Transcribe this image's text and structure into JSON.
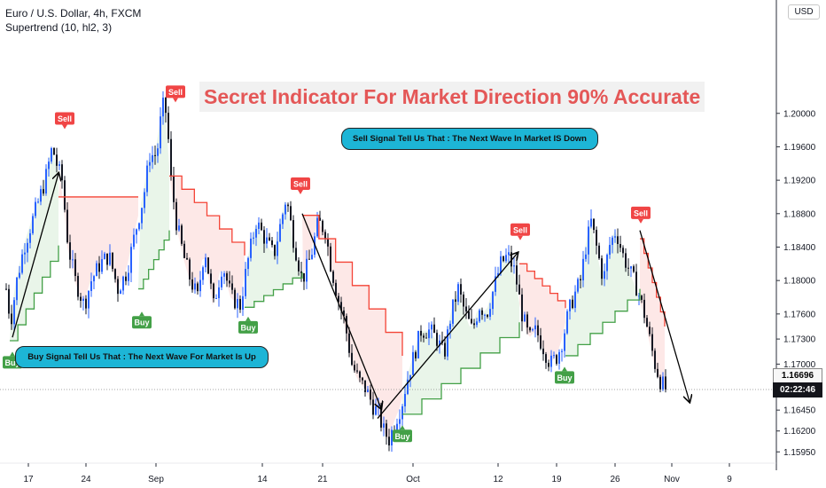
{
  "header": {
    "symbol_line": "Euro / U.S. Dollar, 4h, FXCM",
    "indicator_line": "Supertrend (10, hl2, 3)"
  },
  "currency_label": "USD",
  "headline": "Secret Indicator For Market Direction 90% Accurate",
  "annotations": {
    "sell_note": "Sell Signal Tell Us That : The Next Wave In Market IS Down",
    "buy_note": "Buy Signal Tell Us That : The Next Wave For Market Is Up"
  },
  "price_label": "1.16696",
  "countdown": "02:22:46",
  "colors": {
    "bull_candle": "#2962ff",
    "bear_candle": "#131722",
    "uptrend": "#43a047",
    "downtrend": "#f44336",
    "up_fill": "#e9f5e9",
    "down_fill": "#fde8e7",
    "buy_tag": "#43a047",
    "sell_tag": "#f04545",
    "callout": "#1db5d6",
    "headline_text": "#e45757"
  },
  "chart_data": {
    "type": "candlestick",
    "title": "Euro / U.S. Dollar, 4h, FXCM",
    "indicator": "Supertrend (10, hl2, 3)",
    "x_tick_labels": [
      "17",
      "24",
      "Sep",
      "14",
      "21",
      "Oct",
      "12",
      "19",
      "26",
      "Nov",
      "9"
    ],
    "y_tick_labels": [
      "1.20000",
      "1.19600",
      "1.19200",
      "1.18800",
      "1.18400",
      "1.18000",
      "1.17600",
      "1.17300",
      "1.17000",
      "1.16450",
      "1.16200",
      "1.15950"
    ],
    "y_tick_values": [
      1.2,
      1.196,
      1.192,
      1.188,
      1.184,
      1.18,
      1.176,
      1.173,
      1.17,
      1.1645,
      1.162,
      1.1595
    ],
    "ylim": [
      1.1573,
      1.2125
    ],
    "last_price": 1.16696,
    "price_path": [
      [
        0,
        1.179
      ],
      [
        5,
        1.175
      ],
      [
        12,
        1.18
      ],
      [
        20,
        1.184
      ],
      [
        32,
        1.188
      ],
      [
        44,
        1.192
      ],
      [
        52,
        1.196
      ],
      [
        58,
        1.1935
      ],
      [
        63,
        1.192
      ],
      [
        70,
        1.184
      ],
      [
        78,
        1.18
      ],
      [
        88,
        1.177
      ],
      [
        96,
        1.18
      ],
      [
        106,
        1.182
      ],
      [
        116,
        1.183
      ],
      [
        126,
        1.179
      ],
      [
        136,
        1.181
      ],
      [
        146,
        1.186
      ],
      [
        155,
        1.19
      ],
      [
        162,
        1.195
      ],
      [
        170,
        1.195
      ],
      [
        176,
        1.201
      ],
      [
        181,
        1.2
      ],
      [
        186,
        1.192
      ],
      [
        192,
        1.187
      ],
      [
        200,
        1.183
      ],
      [
        208,
        1.18
      ],
      [
        216,
        1.178
      ],
      [
        224,
        1.184
      ],
      [
        234,
        1.177
      ],
      [
        244,
        1.182
      ],
      [
        254,
        1.178
      ],
      [
        264,
        1.177
      ],
      [
        272,
        1.182
      ],
      [
        282,
        1.187
      ],
      [
        292,
        1.185
      ],
      [
        302,
        1.183
      ],
      [
        310,
        1.187
      ],
      [
        316,
        1.19
      ],
      [
        324,
        1.185
      ],
      [
        334,
        1.18
      ],
      [
        344,
        1.183
      ],
      [
        352,
        1.187
      ],
      [
        360,
        1.186
      ],
      [
        366,
        1.182
      ],
      [
        374,
        1.178
      ],
      [
        382,
        1.175
      ],
      [
        390,
        1.17
      ],
      [
        398,
        1.168
      ],
      [
        406,
        1.167
      ],
      [
        414,
        1.165
      ],
      [
        420,
        1.164
      ],
      [
        426,
        1.162
      ],
      [
        432,
        1.161
      ],
      [
        440,
        1.1635
      ],
      [
        446,
        1.165
      ],
      [
        452,
        1.168
      ],
      [
        460,
        1.171
      ],
      [
        468,
        1.174
      ],
      [
        478,
        1.174
      ],
      [
        486,
        1.173
      ],
      [
        494,
        1.171
      ],
      [
        502,
        1.176
      ],
      [
        510,
        1.179
      ],
      [
        518,
        1.176
      ],
      [
        526,
        1.174
      ],
      [
        534,
        1.177
      ],
      [
        542,
        1.176
      ],
      [
        550,
        1.179
      ],
      [
        558,
        1.182
      ],
      [
        566,
        1.183
      ],
      [
        574,
        1.181
      ],
      [
        582,
        1.176
      ],
      [
        590,
        1.173
      ],
      [
        598,
        1.174
      ],
      [
        606,
        1.172
      ],
      [
        614,
        1.17
      ],
      [
        622,
        1.171
      ],
      [
        628,
        1.173
      ],
      [
        634,
        1.176
      ],
      [
        640,
        1.178
      ],
      [
        648,
        1.18
      ],
      [
        654,
        1.184
      ],
      [
        660,
        1.187
      ],
      [
        666,
        1.184
      ],
      [
        674,
        1.18
      ],
      [
        680,
        1.184
      ],
      [
        688,
        1.186
      ],
      [
        696,
        1.183
      ],
      [
        704,
        1.181
      ],
      [
        712,
        1.179
      ],
      [
        720,
        1.176
      ],
      [
        726,
        1.173
      ],
      [
        732,
        1.17
      ],
      [
        738,
        1.168
      ],
      [
        744,
        1.167
      ]
    ],
    "supertrend": [
      {
        "trend": "up",
        "from": 5,
        "to": 60,
        "start_level": 1.1728,
        "end_level": 1.1842
      },
      {
        "trend": "down",
        "from": 60,
        "to": 150,
        "level": 1.19
      },
      {
        "trend": "up",
        "from": 150,
        "to": 185,
        "start_level": 1.179,
        "end_level": 1.186
      },
      {
        "trend": "down",
        "from": 185,
        "to": 270,
        "start_level": 1.1925,
        "end_level": 1.183
      },
      {
        "trend": "up",
        "from": 270,
        "to": 335,
        "start_level": 1.1768,
        "end_level": 1.181
      },
      {
        "trend": "down",
        "from": 335,
        "to": 448,
        "start_level": 1.1878,
        "end_level": 1.171
      },
      {
        "trend": "up",
        "from": 448,
        "to": 580,
        "start_level": 1.164,
        "end_level": 1.175
      },
      {
        "trend": "down",
        "from": 580,
        "to": 632,
        "start_level": 1.182,
        "end_level": 1.1767
      },
      {
        "trend": "up",
        "from": 632,
        "to": 716,
        "start_level": 1.171,
        "end_level": 1.179
      },
      {
        "trend": "down",
        "from": 716,
        "to": 744,
        "start_level": 1.185,
        "end_level": 1.1745
      }
    ],
    "signals": [
      {
        "label": "Buy",
        "type": "buy",
        "bar": 8,
        "price": 1.1718
      },
      {
        "label": "Sell",
        "type": "sell",
        "bar": 67,
        "price": 1.1978
      },
      {
        "label": "Buy",
        "type": "buy",
        "bar": 154,
        "price": 1.1766
      },
      {
        "label": "Sell",
        "type": "sell",
        "bar": 192,
        "price": 1.201
      },
      {
        "label": "Buy",
        "type": "buy",
        "bar": 274,
        "price": 1.176
      },
      {
        "label": "Sell",
        "type": "sell",
        "bar": 333,
        "price": 1.19
      },
      {
        "label": "Buy",
        "type": "buy",
        "bar": 448,
        "price": 1.163
      },
      {
        "label": "Sell",
        "type": "sell",
        "bar": 581,
        "price": 1.1845
      },
      {
        "label": "Buy",
        "type": "buy",
        "bar": 631,
        "price": 1.17
      },
      {
        "label": "Sell",
        "type": "sell",
        "bar": 717,
        "price": 1.1865
      }
    ],
    "grid": false
  }
}
